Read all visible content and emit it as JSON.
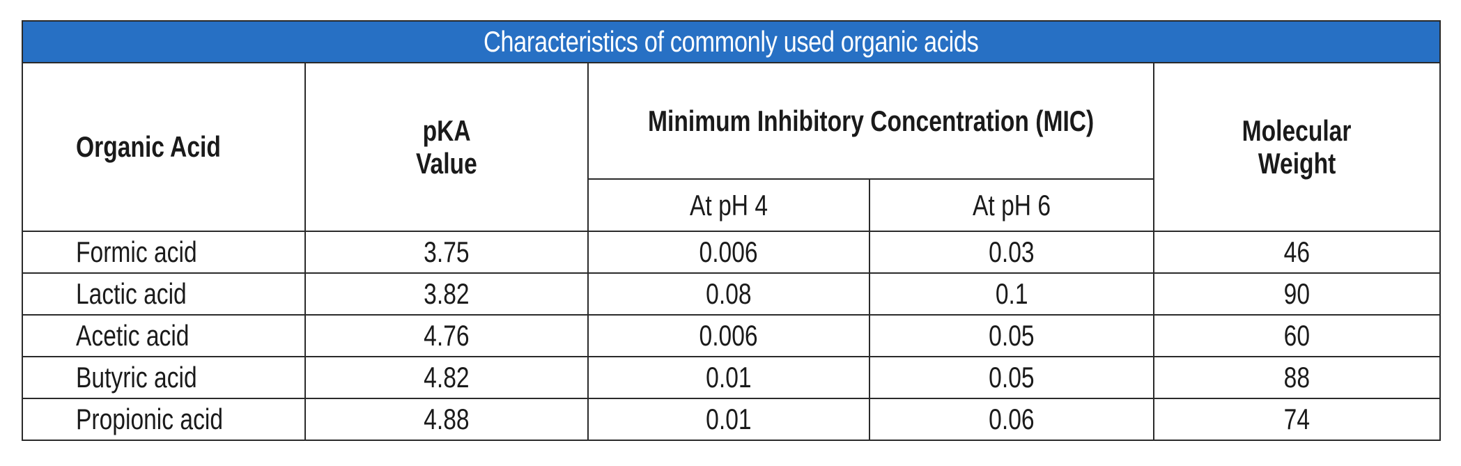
{
  "table": {
    "title": "Characteristics of commonly used organic acids",
    "headers": {
      "organic_acid": "Organic Acid",
      "pka_line1": "pKA",
      "pka_line2": "Value",
      "mic": "Minimum Inhibitory Concentration (MIC)",
      "mic_ph4": "At pH 4",
      "mic_ph6": "At pH 6",
      "mw_line1": "Molecular",
      "mw_line2": "Weight"
    },
    "rows": [
      {
        "acid": "Formic acid",
        "pka": "3.75",
        "ph4": "0.006",
        "ph6": "0.03",
        "mw": "46"
      },
      {
        "acid": "Lactic acid",
        "pka": "3.82",
        "ph4": "0.08",
        "ph6": "0.1",
        "mw": "90"
      },
      {
        "acid": "Acetic acid",
        "pka": "4.76",
        "ph4": "0.006",
        "ph6": "0.05",
        "mw": "60"
      },
      {
        "acid": "Butyric acid",
        "pka": "4.82",
        "ph4": "0.01",
        "ph6": "0.05",
        "mw": "88"
      },
      {
        "acid": "Propionic acid",
        "pka": "4.88",
        "ph4": "0.01",
        "ph6": "0.06",
        "mw": "74"
      }
    ]
  },
  "colors": {
    "title_bg": "#2770c4",
    "title_text": "#ffffff",
    "border": "#2a2a2a"
  }
}
